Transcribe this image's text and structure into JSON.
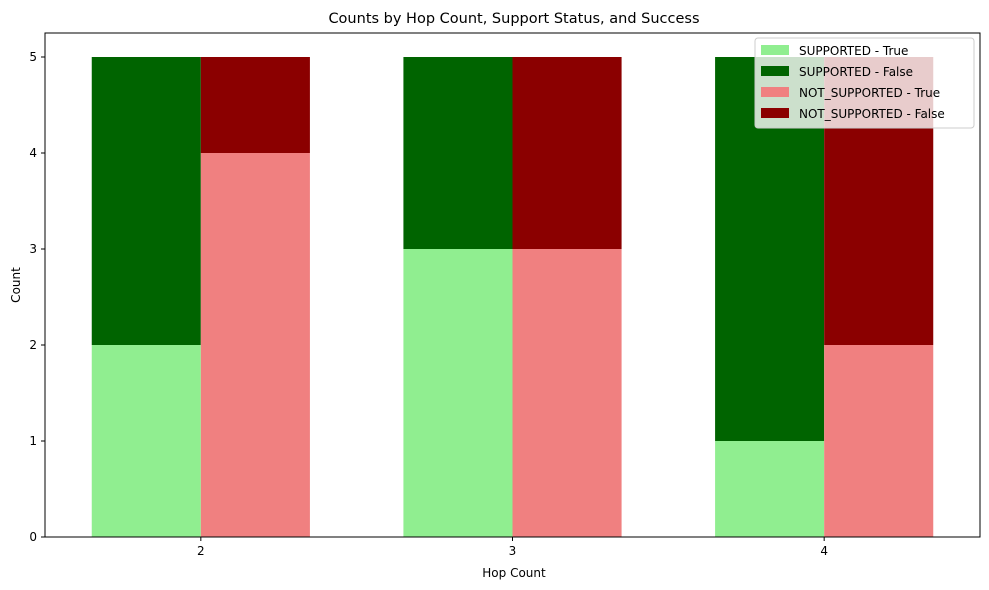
{
  "chart_data": {
    "type": "bar",
    "stacked": true,
    "grouped": true,
    "title": "Counts by Hop Count, Support Status, and Success",
    "xlabel": "Hop Count",
    "ylabel": "Count",
    "categories": [
      "2",
      "3",
      "4"
    ],
    "ylim": [
      0,
      5.25
    ],
    "yticks": [
      0,
      1,
      2,
      3,
      4,
      5
    ],
    "legend_position": "top-right",
    "groups": [
      {
        "name": "SUPPORTED",
        "series": [
          {
            "name": "SUPPORTED - True",
            "values": [
              2,
              3,
              1
            ],
            "color": "#90ee90"
          },
          {
            "name": "SUPPORTED - False",
            "values": [
              3,
              2,
              4
            ],
            "color": "#006400"
          }
        ]
      },
      {
        "name": "NOT_SUPPORTED",
        "series": [
          {
            "name": "NOT_SUPPORTED - True",
            "values": [
              4,
              3,
              2
            ],
            "color": "#f08080"
          },
          {
            "name": "NOT_SUPPORTED - False",
            "values": [
              1,
              2,
              3
            ],
            "color": "#8b0000"
          }
        ]
      }
    ]
  }
}
